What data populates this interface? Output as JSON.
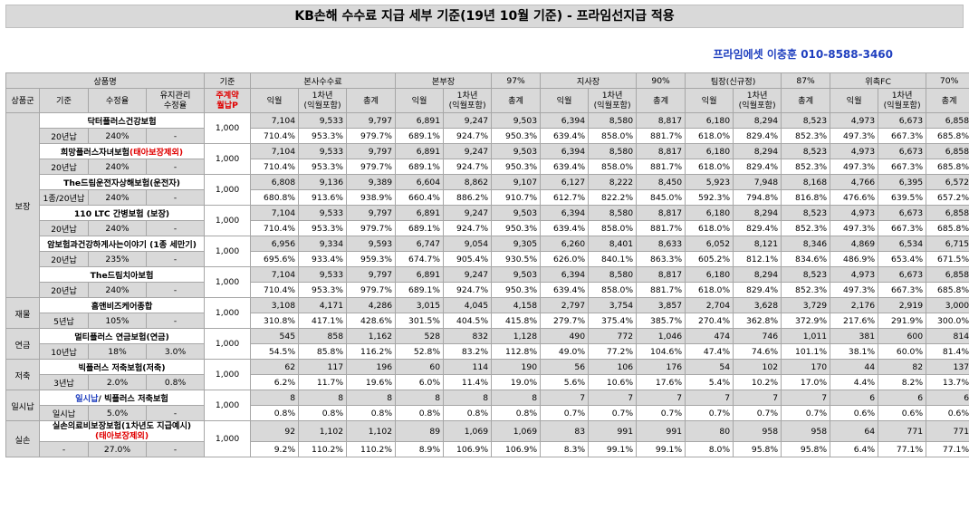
{
  "title": "KB손해 수수료 지급 세부 기준(19년 10월 기준) - 프라임선지급 적용",
  "contact": "프라임에셋 이충훈 010-8588-3460",
  "header": {
    "product": "상품명",
    "base": "기준",
    "hq_fee": "본사수수료",
    "div": "본부장",
    "div_rate": "97%",
    "branch": "지사장",
    "branch_rate": "90%",
    "team": "팀장(신규정)",
    "team_rate": "87%",
    "fc": "위촉FC",
    "fc_rate": "70%",
    "group": "상품군",
    "criteria": "기준",
    "collect": "수정율",
    "maint": "유지관리\n수정율",
    "main_contract": "주계약\n월납P",
    "m1": "익월",
    "y1": "1차년\n(익월포함)",
    "total": "총계"
  },
  "groups": [
    {
      "name": "보장",
      "products": [
        {
          "name": "닥터플러스건강보험",
          "name_extra": "",
          "criteria": "20년납",
          "rate": "240%",
          "maint": "-",
          "base": "1,000",
          "nums": [
            "7,104",
            "9,533",
            "9,797",
            "6,891",
            "9,247",
            "9,503",
            "6,394",
            "8,580",
            "8,817",
            "6,180",
            "8,294",
            "8,523",
            "4,973",
            "6,673",
            "6,858"
          ],
          "pcts": [
            "710.4%",
            "953.3%",
            "979.7%",
            "689.1%",
            "924.7%",
            "950.3%",
            "639.4%",
            "858.0%",
            "881.7%",
            "618.0%",
            "829.4%",
            "852.3%",
            "497.3%",
            "667.3%",
            "685.8%"
          ]
        },
        {
          "name": "희망플러스자녀보험",
          "name_extra": "(태아보장제외)",
          "criteria": "20년납",
          "rate": "240%",
          "maint": "-",
          "base": "1,000",
          "nums": [
            "7,104",
            "9,533",
            "9,797",
            "6,891",
            "9,247",
            "9,503",
            "6,394",
            "8,580",
            "8,817",
            "6,180",
            "8,294",
            "8,523",
            "4,973",
            "6,673",
            "6,858"
          ],
          "pcts": [
            "710.4%",
            "953.3%",
            "979.7%",
            "689.1%",
            "924.7%",
            "950.3%",
            "639.4%",
            "858.0%",
            "881.7%",
            "618.0%",
            "829.4%",
            "852.3%",
            "497.3%",
            "667.3%",
            "685.8%"
          ]
        },
        {
          "name": "The드림운전자상해보험(운전자)",
          "name_extra": "",
          "criteria": "1종/20년납",
          "rate": "240%",
          "maint": "-",
          "base": "1,000",
          "nums": [
            "6,808",
            "9,136",
            "9,389",
            "6,604",
            "8,862",
            "9,107",
            "6,127",
            "8,222",
            "8,450",
            "5,923",
            "7,948",
            "8,168",
            "4,766",
            "6,395",
            "6,572"
          ],
          "pcts": [
            "680.8%",
            "913.6%",
            "938.9%",
            "660.4%",
            "886.2%",
            "910.7%",
            "612.7%",
            "822.2%",
            "845.0%",
            "592.3%",
            "794.8%",
            "816.8%",
            "476.6%",
            "639.5%",
            "657.2%"
          ]
        },
        {
          "name": "110 LTC 간병보험 (보장)",
          "name_extra": "",
          "criteria": "20년납",
          "rate": "240%",
          "maint": "-",
          "base": "1,000",
          "nums": [
            "7,104",
            "9,533",
            "9,797",
            "6,891",
            "9,247",
            "9,503",
            "6,394",
            "8,580",
            "8,817",
            "6,180",
            "8,294",
            "8,523",
            "4,973",
            "6,673",
            "6,858"
          ],
          "pcts": [
            "710.4%",
            "953.3%",
            "979.7%",
            "689.1%",
            "924.7%",
            "950.3%",
            "639.4%",
            "858.0%",
            "881.7%",
            "618.0%",
            "829.4%",
            "852.3%",
            "497.3%",
            "667.3%",
            "685.8%"
          ]
        },
        {
          "name": "암보험과건강하게사는이야기 (1종 세만기)",
          "name_extra": "",
          "criteria": "20년납",
          "rate": "235%",
          "maint": "-",
          "base": "1,000",
          "nums": [
            "6,956",
            "9,334",
            "9,593",
            "6,747",
            "9,054",
            "9,305",
            "6,260",
            "8,401",
            "8,633",
            "6,052",
            "8,121",
            "8,346",
            "4,869",
            "6,534",
            "6,715"
          ],
          "pcts": [
            "695.6%",
            "933.4%",
            "959.3%",
            "674.7%",
            "905.4%",
            "930.5%",
            "626.0%",
            "840.1%",
            "863.3%",
            "605.2%",
            "812.1%",
            "834.6%",
            "486.9%",
            "653.4%",
            "671.5%"
          ]
        },
        {
          "name": "The드림치아보험",
          "name_extra": "",
          "criteria": "20년납",
          "rate": "240%",
          "maint": "-",
          "base": "1,000",
          "nums": [
            "7,104",
            "9,533",
            "9,797",
            "6,891",
            "9,247",
            "9,503",
            "6,394",
            "8,580",
            "8,817",
            "6,180",
            "8,294",
            "8,523",
            "4,973",
            "6,673",
            "6,858"
          ],
          "pcts": [
            "710.4%",
            "953.3%",
            "979.7%",
            "689.1%",
            "924.7%",
            "950.3%",
            "639.4%",
            "858.0%",
            "881.7%",
            "618.0%",
            "829.4%",
            "852.3%",
            "497.3%",
            "667.3%",
            "685.8%"
          ]
        }
      ]
    },
    {
      "name": "재물",
      "products": [
        {
          "name": "홈앤비즈케어종합",
          "name_extra": "",
          "criteria": "5년납",
          "rate": "105%",
          "maint": "-",
          "base": "1,000",
          "nums": [
            "3,108",
            "4,171",
            "4,286",
            "3,015",
            "4,045",
            "4,158",
            "2,797",
            "3,754",
            "3,857",
            "2,704",
            "3,628",
            "3,729",
            "2,176",
            "2,919",
            "3,000"
          ],
          "pcts": [
            "310.8%",
            "417.1%",
            "428.6%",
            "301.5%",
            "404.5%",
            "415.8%",
            "279.7%",
            "375.4%",
            "385.7%",
            "270.4%",
            "362.8%",
            "372.9%",
            "217.6%",
            "291.9%",
            "300.0%"
          ]
        }
      ]
    },
    {
      "name": "연금",
      "products": [
        {
          "name": "멀티플러스 연금보험(연금)",
          "name_extra": "",
          "criteria": "10년납",
          "rate": "18%",
          "maint": "3.0%",
          "base": "1,000",
          "nums": [
            "545",
            "858",
            "1,162",
            "528",
            "832",
            "1,128",
            "490",
            "772",
            "1,046",
            "474",
            "746",
            "1,011",
            "381",
            "600",
            "814"
          ],
          "pcts": [
            "54.5%",
            "85.8%",
            "116.2%",
            "52.8%",
            "83.2%",
            "112.8%",
            "49.0%",
            "77.2%",
            "104.6%",
            "47.4%",
            "74.6%",
            "101.1%",
            "38.1%",
            "60.0%",
            "81.4%"
          ]
        }
      ]
    },
    {
      "name": "저축",
      "products": [
        {
          "name": "빅플러스 저축보험(저축)",
          "name_extra": "",
          "criteria": "3년납",
          "rate": "2.0%",
          "maint": "0.8%",
          "base": "1,000",
          "nums": [
            "62",
            "117",
            "196",
            "60",
            "114",
            "190",
            "56",
            "106",
            "176",
            "54",
            "102",
            "170",
            "44",
            "82",
            "137"
          ],
          "pcts": [
            "6.2%",
            "11.7%",
            "19.6%",
            "6.0%",
            "11.4%",
            "19.0%",
            "5.6%",
            "10.6%",
            "17.6%",
            "5.4%",
            "10.2%",
            "17.0%",
            "4.4%",
            "8.2%",
            "13.7%"
          ]
        }
      ]
    },
    {
      "name": "일시납",
      "products": [
        {
          "name": "일시납",
          "name_extra": "/ 빅플러스 저축보험",
          "criteria": "일시납",
          "rate": "5.0%",
          "maint": "-",
          "base": "1,000",
          "nums": [
            "8",
            "8",
            "8",
            "8",
            "8",
            "8",
            "7",
            "7",
            "7",
            "7",
            "7",
            "7",
            "6",
            "6",
            "6"
          ],
          "pcts": [
            "0.8%",
            "0.8%",
            "0.8%",
            "0.8%",
            "0.8%",
            "0.8%",
            "0.7%",
            "0.7%",
            "0.7%",
            "0.7%",
            "0.7%",
            "0.7%",
            "0.6%",
            "0.6%",
            "0.6%"
          ]
        }
      ]
    },
    {
      "name": "실손",
      "products": [
        {
          "name": "실손의료비보장보험(1차년도 지급예시)",
          "name_extra": "(태아보장제외)",
          "criteria": "-",
          "rate": "27.0%",
          "maint": "-",
          "base": "1,000",
          "nums": [
            "92",
            "1,102",
            "1,102",
            "89",
            "1,069",
            "1,069",
            "83",
            "991",
            "991",
            "80",
            "958",
            "958",
            "64",
            "771",
            "771"
          ],
          "pcts": [
            "9.2%",
            "110.2%",
            "110.2%",
            "8.9%",
            "106.9%",
            "106.9%",
            "8.3%",
            "99.1%",
            "99.1%",
            "8.0%",
            "95.8%",
            "95.8%",
            "6.4%",
            "77.1%",
            "77.1%"
          ]
        }
      ]
    }
  ]
}
